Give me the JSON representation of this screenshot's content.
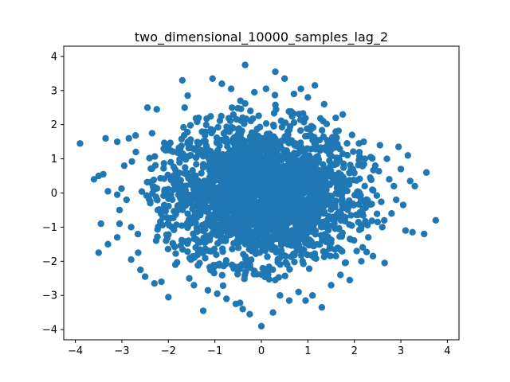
{
  "chart_data": {
    "type": "scatter",
    "title": "two_dimensional_10000_samples_lag_2",
    "xlabel": "",
    "ylabel": "",
    "xlim": [
      -4.25,
      4.25
    ],
    "ylim": [
      -4.3,
      4.3
    ],
    "xticks": [
      -4,
      -3,
      -2,
      -1,
      0,
      1,
      2,
      3,
      4
    ],
    "xtick_labels": [
      "−4",
      "−3",
      "−2",
      "−1",
      "0",
      "1",
      "2",
      "3",
      "4"
    ],
    "yticks": [
      -4,
      -3,
      -2,
      -1,
      0,
      1,
      2,
      3,
      4
    ],
    "ytick_labels": [
      "−4",
      "−3",
      "−2",
      "−1",
      "0",
      "1",
      "2",
      "3",
      "4"
    ],
    "grid": false,
    "legend": "none",
    "marker_color": "#1f77b4",
    "series": [
      {
        "points": [
          [
            -3.9,
            1.45
          ],
          [
            -3.6,
            0.4
          ],
          [
            -3.5,
            0.5
          ],
          [
            -3.4,
            0.55
          ],
          [
            -3.45,
            -0.9
          ],
          [
            -3.5,
            -1.75
          ],
          [
            -3.3,
            -1.5
          ],
          [
            -3.35,
            1.6
          ],
          [
            -3.1,
            1.5
          ],
          [
            -3.3,
            0.05
          ],
          [
            -3.1,
            -0.05
          ],
          [
            -3.05,
            -0.5
          ],
          [
            -3.1,
            -1.3
          ],
          [
            -3.05,
            -0.9
          ],
          [
            -2.95,
            0.8
          ],
          [
            -2.9,
            -0.2
          ],
          [
            -2.85,
            1.6
          ],
          [
            -2.8,
            -1.0
          ],
          [
            -2.8,
            -1.95
          ],
          [
            -2.7,
            1.2
          ],
          [
            -2.65,
            -1.75
          ],
          [
            -2.6,
            -2.25
          ],
          [
            -2.5,
            -2.45
          ],
          [
            -2.45,
            2.5
          ],
          [
            -2.35,
            1.75
          ],
          [
            -2.3,
            -2.65
          ],
          [
            -2.25,
            2.45
          ],
          [
            -2.15,
            -2.6
          ],
          [
            -2.1,
            1.3
          ],
          [
            -2.05,
            -1.4
          ],
          [
            -2.0,
            -3.05
          ],
          [
            -1.95,
            0.9
          ],
          [
            -1.85,
            -2.1
          ],
          [
            -1.7,
            3.3
          ],
          [
            -1.65,
            2.5
          ],
          [
            -1.55,
            -2.5
          ],
          [
            -1.45,
            -2.7
          ],
          [
            -1.35,
            2.2
          ],
          [
            -1.25,
            -3.45
          ],
          [
            -1.15,
            -2.85
          ],
          [
            -1.05,
            3.35
          ],
          [
            -0.95,
            -2.95
          ],
          [
            -0.85,
            3.2
          ],
          [
            -0.75,
            -3.1
          ],
          [
            -0.65,
            3.05
          ],
          [
            -0.55,
            -3.25
          ],
          [
            -0.45,
            2.7
          ],
          [
            -0.4,
            -3.4
          ],
          [
            -0.35,
            3.75
          ],
          [
            -0.25,
            -3.55
          ],
          [
            -0.15,
            2.95
          ],
          [
            0.0,
            -3.9
          ],
          [
            0.1,
            3.05
          ],
          [
            0.25,
            -3.5
          ],
          [
            0.3,
            3.55
          ],
          [
            0.4,
            -3.0
          ],
          [
            0.5,
            3.35
          ],
          [
            0.6,
            -3.15
          ],
          [
            0.7,
            2.9
          ],
          [
            0.8,
            -2.9
          ],
          [
            0.85,
            3.05
          ],
          [
            0.95,
            -3.15
          ],
          [
            1.0,
            2.8
          ],
          [
            1.1,
            -3.0
          ],
          [
            1.15,
            3.15
          ],
          [
            1.3,
            -3.35
          ],
          [
            1.35,
            2.6
          ],
          [
            1.5,
            -2.7
          ],
          [
            1.6,
            2.2
          ],
          [
            1.7,
            -2.4
          ],
          [
            1.75,
            2.3
          ],
          [
            1.9,
            -2.55
          ],
          [
            1.95,
            1.7
          ],
          [
            2.05,
            -1.7
          ],
          [
            2.1,
            1.45
          ],
          [
            2.15,
            -2.0
          ],
          [
            2.2,
            1.5
          ],
          [
            2.3,
            -1.3
          ],
          [
            2.35,
            1.05
          ],
          [
            2.4,
            -1.85
          ],
          [
            2.45,
            0.8
          ],
          [
            2.5,
            -0.85
          ],
          [
            2.55,
            1.4
          ],
          [
            2.6,
            -1.0
          ],
          [
            2.65,
            -2.05
          ],
          [
            2.7,
            1.0
          ],
          [
            2.75,
            0.4
          ],
          [
            2.8,
            -0.6
          ],
          [
            2.85,
            0.2
          ],
          [
            2.9,
            -0.2
          ],
          [
            2.95,
            1.35
          ],
          [
            3.0,
            0.7
          ],
          [
            3.05,
            -0.35
          ],
          [
            3.1,
            -1.1
          ],
          [
            3.15,
            1.1
          ],
          [
            3.2,
            0.35
          ],
          [
            3.25,
            -1.15
          ],
          [
            3.3,
            0.2
          ],
          [
            3.5,
            -1.2
          ],
          [
            3.55,
            0.6
          ],
          [
            3.75,
            -0.8
          ]
        ]
      }
    ]
  }
}
